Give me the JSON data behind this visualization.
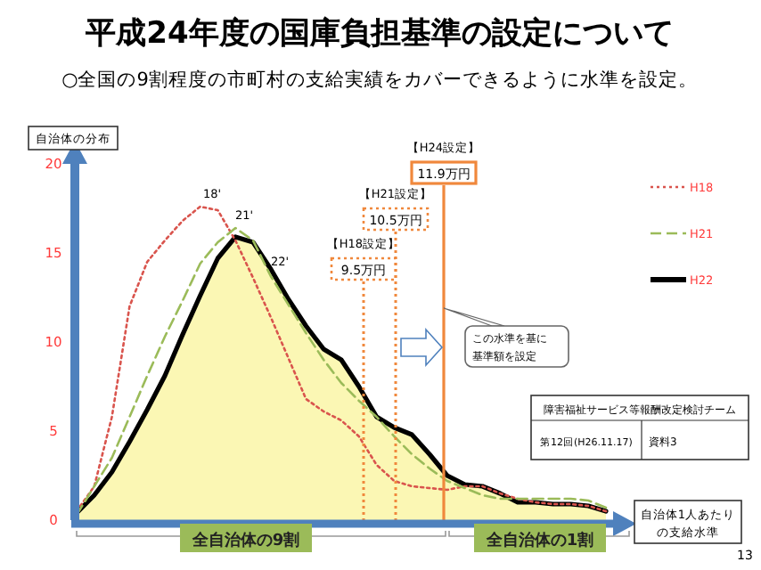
{
  "chart_data": {
    "type": "line",
    "title": "平成24年度の国庫負担基準の設定について",
    "subtitle": "○全国の9割程度の市町村の支給実績をカバーできるように水準を設定。",
    "ylabel": "自治体の分布",
    "xlabel": "自治体1人あたりの支給水準",
    "categories": [
      null,
      null,
      null,
      null,
      null,
      null,
      null,
      null,
      null,
      null,
      null,
      null,
      null,
      null,
      null,
      null,
      null,
      null,
      null,
      null,
      null,
      null,
      null,
      null,
      null,
      null,
      null,
      null,
      null,
      null,
      null
    ],
    "ylim": [
      0,
      20
    ],
    "yticks": [
      0,
      5,
      10,
      15,
      20
    ],
    "tick_labels": "y",
    "legend": "top right",
    "series": [
      {
        "name": "H18",
        "color": "#d9544d",
        "line_style": "dotted",
        "values": [
          0.5,
          1.9,
          5.8,
          12.0,
          14.5,
          15.7,
          16.8,
          17.6,
          17.4,
          15.7,
          13.6,
          11.4,
          9.1,
          6.8,
          6.1,
          5.6,
          4.7,
          3.1,
          2.2,
          1.9,
          1.8,
          1.7,
          1.9,
          1.9,
          1.5,
          1.2,
          1.0,
          0.9,
          0.9,
          0.8,
          0.5
        ]
      },
      {
        "name": "H21",
        "color": "#9bbb59",
        "line_style": "dashed",
        "values": [
          0.3,
          1.9,
          3.5,
          5.8,
          8.1,
          10.3,
          12.3,
          14.4,
          15.6,
          16.4,
          15.7,
          13.7,
          12.1,
          10.5,
          9.0,
          7.7,
          6.7,
          5.8,
          4.7,
          3.7,
          2.9,
          2.2,
          1.8,
          1.4,
          1.2,
          1.2,
          1.2,
          1.2,
          1.2,
          1.1,
          0.7
        ]
      },
      {
        "name": "H22",
        "type": "area",
        "color": "#000000",
        "line_style": "solid",
        "values": [
          0.4,
          1.4,
          2.7,
          4.4,
          6.2,
          8.1,
          10.4,
          12.6,
          14.7,
          15.9,
          15.6,
          14.1,
          12.4,
          10.9,
          9.6,
          9.0,
          7.5,
          5.8,
          5.2,
          4.8,
          3.7,
          2.5,
          2.0,
          1.9,
          1.5,
          1.0,
          1.0,
          0.9,
          0.9,
          0.8,
          0.5
        ]
      }
    ],
    "annotations": [
      "9.5万円",
      "10.5万円",
      "11.9万円",
      "18'",
      "21'",
      "22'",
      "この水準を基に基準額を設定",
      "全自治体の9割",
      "全自治体の1割",
      "障害福祉サービス等報酬改定検討チーム",
      "第12回(H26.11.17)",
      "資料3",
      "13",
      "【H18設定】",
      "【H21設定】",
      "【H24設定】"
    ]
  }
}
